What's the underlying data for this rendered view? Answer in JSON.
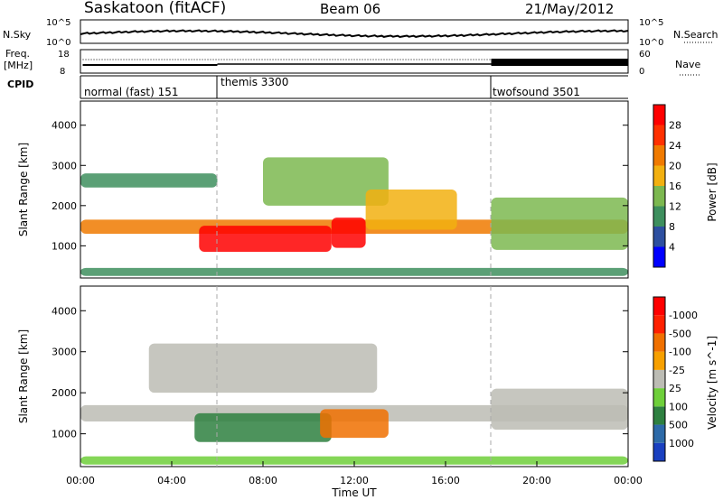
{
  "header": {
    "station": "Saskatoon (fitACF)",
    "beam": "Beam 06",
    "date": "21/May/2012"
  },
  "nsky_panel": {
    "left_label": "N.Sky",
    "right_label": "N.Search",
    "left_ticks": [
      "10^5",
      "10^0"
    ],
    "right_ticks": [
      "10^5",
      "10^0"
    ]
  },
  "freq_panel": {
    "left_label_line1": "Freq.",
    "left_label_line2": "[MHz]",
    "right_label": "Nave",
    "left_ticks": [
      "18",
      "8"
    ],
    "right_ticks": [
      "60",
      "0"
    ]
  },
  "cpid": {
    "label": "CPID",
    "modes": [
      {
        "name": "normal (fast) 151",
        "start_hour": 0
      },
      {
        "name": "themis 3300",
        "start_hour": 6
      },
      {
        "name": "twofsound 3501",
        "start_hour": 18
      }
    ]
  },
  "colors": {
    "power_scale": [
      "#0000ff",
      "#2d4fa0",
      "#3e8f5e",
      "#7cb850",
      "#f2b010",
      "#f07a00",
      "#ff3000",
      "#ff0000"
    ],
    "velocity_scale": [
      "#1a40c0",
      "#2d6aa8",
      "#2e8040",
      "#6ecf3a",
      "#bcbcb4",
      "#f7a000",
      "#f07000",
      "#ff2000",
      "#ff0000"
    ],
    "ground_scatter": "#bcbcb4"
  },
  "chart_data": [
    {
      "type": "heatmap",
      "title": "",
      "xlabel": "",
      "ylabel": "Slant Range [km]",
      "x_range_hours": [
        0,
        24
      ],
      "ylim": [
        200,
        4600
      ],
      "y_ticks": [
        1000,
        2000,
        3000,
        4000
      ],
      "colorbar": {
        "label": "Power [dB]",
        "range": [
          0,
          32
        ],
        "ticks": [
          4,
          8,
          12,
          16,
          20,
          24,
          28
        ]
      },
      "echo_regions": [
        {
          "t0": 0.0,
          "t1": 24.0,
          "r0": 1300,
          "r1": 1650,
          "power_db": 22
        },
        {
          "t0": 5.2,
          "t1": 11.0,
          "r0": 850,
          "r1": 1500,
          "power_db": 30
        },
        {
          "t0": 11.0,
          "t1": 12.5,
          "r0": 950,
          "r1": 1700,
          "power_db": 28
        },
        {
          "t0": 0.0,
          "t1": 6.0,
          "r0": 2450,
          "r1": 2800,
          "power_db": 10
        },
        {
          "t0": 8.0,
          "t1": 13.5,
          "r0": 2000,
          "r1": 3200,
          "power_db": 14
        },
        {
          "t0": 12.5,
          "t1": 16.5,
          "r0": 1400,
          "r1": 2400,
          "power_db": 18
        },
        {
          "t0": 18.0,
          "t1": 24.0,
          "r0": 900,
          "r1": 2200,
          "power_db": 12
        },
        {
          "t0": 0.0,
          "t1": 24.0,
          "r0": 250,
          "r1": 450,
          "power_db": 8
        }
      ]
    },
    {
      "type": "heatmap",
      "title": "",
      "xlabel": "Time UT",
      "ylabel": "Slant Range [km]",
      "x_range_hours": [
        0,
        24
      ],
      "ylim": [
        200,
        4600
      ],
      "y_ticks": [
        1000,
        2000,
        3000,
        4000
      ],
      "x_ticks": [
        "00:00",
        "04:00",
        "08:00",
        "12:00",
        "16:00",
        "20:00",
        "00:00"
      ],
      "colorbar": {
        "label": "Velocity [m s^-1]",
        "ticks": [
          1000,
          500,
          100,
          25,
          -25,
          -100,
          -500,
          -1000
        ]
      },
      "echo_regions": [
        {
          "t0": 0.0,
          "t1": 24.0,
          "r0": 1300,
          "r1": 1700,
          "velocity": 0
        },
        {
          "t0": 5.0,
          "t1": 11.0,
          "r0": 800,
          "r1": 1500,
          "velocity": 150
        },
        {
          "t0": 10.5,
          "t1": 13.5,
          "r0": 900,
          "r1": 1600,
          "velocity": -200
        },
        {
          "t0": 3.0,
          "t1": 13.0,
          "r0": 2000,
          "r1": 3200,
          "velocity": 0
        },
        {
          "t0": 18.0,
          "t1": 24.0,
          "r0": 1100,
          "r1": 2100,
          "velocity": 0
        },
        {
          "t0": 0.0,
          "t1": 24.0,
          "r0": 250,
          "r1": 450,
          "velocity": 80
        }
      ]
    }
  ]
}
